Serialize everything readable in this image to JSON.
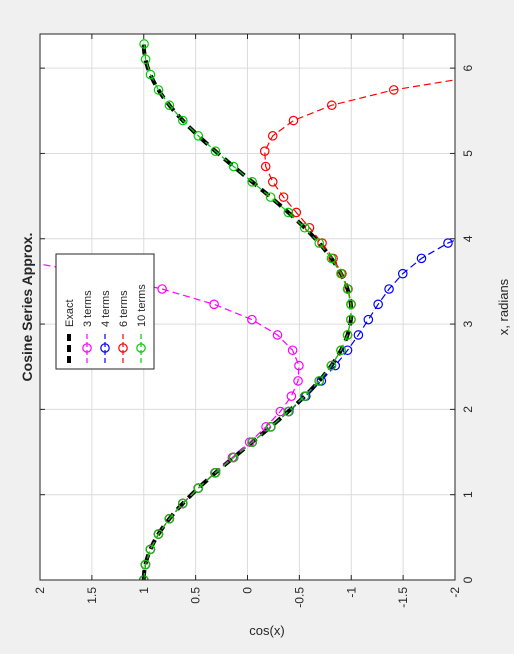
{
  "chart_data": {
    "type": "line",
    "title": "Cosine Series Approx.",
    "xlabel": "x, radians",
    "ylabel": "cos(x)",
    "xlim": [
      0,
      6.4
    ],
    "ylim": [
      -2,
      2
    ],
    "xticks": [
      "0",
      "1",
      "2",
      "3",
      "4",
      "5",
      "6"
    ],
    "yticks": [
      "2",
      "1.5",
      "1",
      "0.5",
      "0",
      "-0.5",
      "-1",
      "-1.5",
      "-2"
    ],
    "grid": true,
    "legend_position": "top-left",
    "series": [
      {
        "name": "Exact",
        "color": "#000000",
        "style": "thick-dashed",
        "terms": 0
      },
      {
        "name": "3 terms",
        "color": "#ff00ff",
        "style": "dashed-circle",
        "terms": 3
      },
      {
        "name": "4 terms",
        "color": "#0000ff",
        "style": "dashed-circle",
        "terms": 4
      },
      {
        "name": "6 terms",
        "color": "#ff0000",
        "style": "dashed-circle",
        "terms": 6
      },
      {
        "name": "10 terms",
        "color": "#00cc00",
        "style": "dashed-circle",
        "terms": 10
      }
    ]
  }
}
